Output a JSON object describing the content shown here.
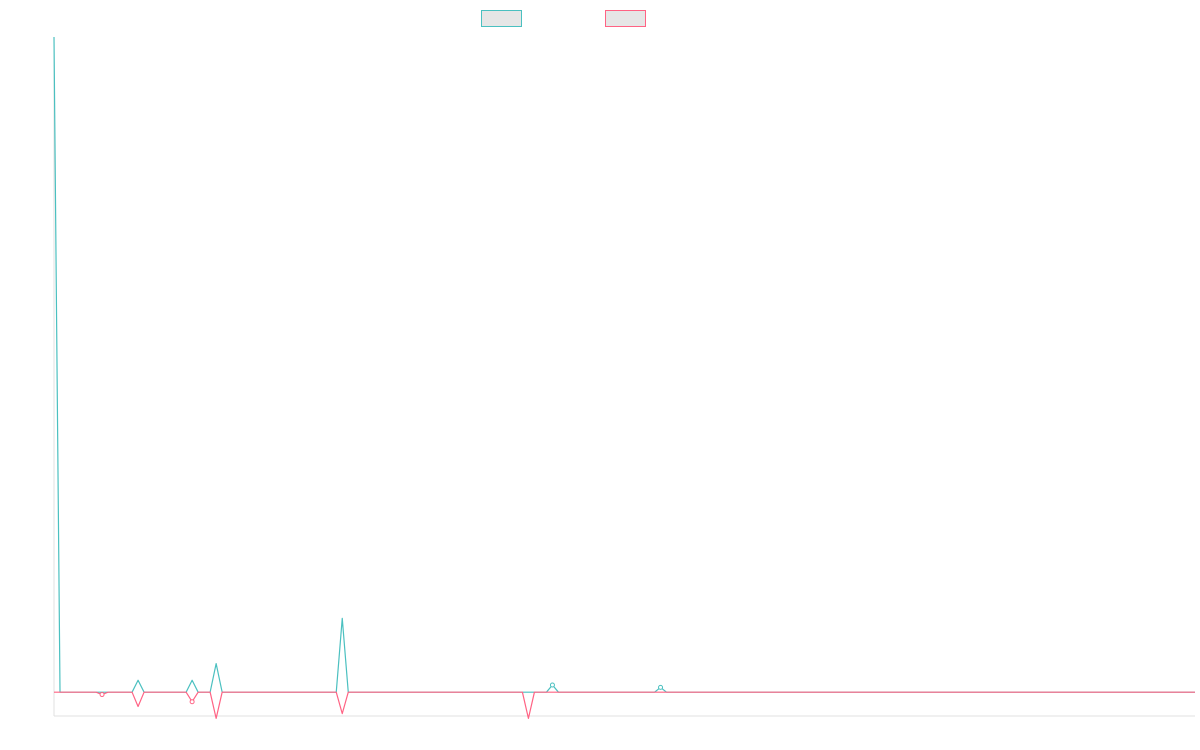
{
  "chart_data": {
    "type": "line",
    "title": "",
    "xlabel": "",
    "ylabel": "",
    "legend_position": "top-center",
    "grid": false,
    "x": [
      0,
      1,
      2,
      3,
      4,
      5,
      6,
      7,
      8,
      9,
      10,
      11,
      12,
      13,
      14,
      15,
      16,
      17,
      18,
      19,
      20,
      21,
      22,
      23,
      24,
      25,
      26,
      27,
      28,
      29,
      30,
      31,
      32,
      33,
      34,
      35,
      36,
      37,
      38,
      39,
      40,
      41,
      42,
      43,
      44,
      45,
      46,
      47,
      48,
      49,
      50,
      51,
      52,
      53,
      54,
      55,
      56,
      57,
      58,
      59,
      60,
      61,
      62,
      63,
      64,
      65,
      66,
      67,
      68,
      69,
      70,
      71,
      72,
      73,
      74,
      75,
      76,
      77,
      78,
      79,
      80,
      81,
      82,
      83,
      84,
      85,
      86,
      87,
      88,
      89,
      90,
      91,
      92,
      93,
      94,
      95,
      96,
      97,
      98,
      99,
      100,
      101,
      102,
      103,
      104,
      105,
      106,
      107,
      108,
      109,
      110,
      111,
      112,
      113,
      114,
      115,
      116,
      117,
      118,
      119,
      120,
      121,
      122,
      123,
      124,
      125,
      126,
      127,
      128,
      129,
      130,
      131,
      132,
      133,
      134,
      135,
      136,
      137,
      138,
      139,
      140,
      141,
      142,
      143,
      144,
      145,
      146,
      147,
      148,
      149,
      150,
      151,
      152,
      153,
      154,
      155,
      156,
      157,
      158,
      159,
      160,
      161,
      162,
      163,
      164,
      165,
      166,
      167,
      168,
      169,
      170,
      171,
      172,
      173,
      174,
      175,
      176,
      177,
      178,
      179,
      180,
      181,
      182,
      183,
      184,
      185,
      186,
      187,
      188,
      189,
      190
    ],
    "ylim": [
      -10,
      275
    ],
    "series": [
      {
        "color": "#4bc0c0",
        "values": [
          275,
          0,
          0,
          0,
          0,
          0,
          0,
          0,
          0,
          0,
          0,
          0,
          0,
          0,
          5,
          0,
          0,
          0,
          0,
          0,
          0,
          0,
          0,
          5,
          0,
          0,
          0,
          12,
          0,
          0,
          0,
          0,
          0,
          0,
          0,
          0,
          0,
          0,
          0,
          0,
          0,
          0,
          0,
          0,
          0,
          0,
          0,
          0,
          31,
          0,
          0,
          0,
          0,
          0,
          0,
          0,
          0,
          0,
          0,
          0,
          0,
          0,
          0,
          0,
          0,
          0,
          0,
          0,
          0,
          0,
          0,
          0,
          0,
          0,
          0,
          0,
          0,
          0,
          0,
          0,
          0,
          0,
          0,
          3,
          0,
          0,
          0,
          0,
          0,
          0,
          0,
          0,
          0,
          0,
          0,
          0,
          0,
          0,
          0,
          0,
          0,
          2,
          0,
          0,
          0,
          0,
          0,
          0,
          0,
          0,
          0,
          0,
          0,
          0,
          0,
          0,
          0,
          0,
          0,
          0,
          0,
          0,
          0,
          0,
          0,
          0,
          0,
          0,
          0,
          0,
          0,
          0,
          0,
          0,
          0,
          0,
          0,
          0,
          0,
          0,
          0,
          0,
          0,
          0,
          0,
          0,
          0,
          0,
          0,
          0,
          0,
          0,
          0,
          0,
          0,
          0,
          0,
          0,
          0,
          0,
          0,
          0,
          0,
          0,
          0,
          0,
          0,
          0,
          0,
          0,
          0,
          0,
          0,
          0,
          0,
          0,
          0,
          0,
          0,
          0,
          0,
          0,
          0,
          0,
          0,
          0,
          0,
          0,
          0,
          0,
          0
        ]
      },
      {
        "color": "#ff6384",
        "values": [
          0,
          0,
          0,
          0,
          0,
          0,
          0,
          0,
          -1,
          0,
          0,
          0,
          0,
          0,
          -6,
          0,
          0,
          0,
          0,
          0,
          0,
          0,
          0,
          -4,
          0,
          0,
          0,
          -11,
          0,
          0,
          0,
          0,
          0,
          0,
          0,
          0,
          0,
          0,
          0,
          0,
          0,
          0,
          0,
          0,
          0,
          0,
          0,
          0,
          -9,
          0,
          0,
          0,
          0,
          0,
          0,
          0,
          0,
          0,
          0,
          0,
          0,
          0,
          0,
          0,
          0,
          0,
          0,
          0,
          0,
          0,
          0,
          0,
          0,
          0,
          0,
          0,
          0,
          0,
          0,
          -11,
          0,
          0,
          0,
          0,
          0,
          0,
          0,
          0,
          0,
          0,
          0,
          0,
          0,
          0,
          0,
          0,
          0,
          0,
          0,
          0,
          0,
          0,
          0,
          0,
          0,
          0,
          0,
          0,
          0,
          0,
          0,
          0,
          0,
          0,
          0,
          0,
          0,
          0,
          0,
          0,
          0,
          0,
          0,
          0,
          0,
          0,
          0,
          0,
          0,
          0,
          0,
          0,
          0,
          0,
          0,
          0,
          0,
          0,
          0,
          0,
          0,
          0,
          0,
          0,
          0,
          0,
          0,
          0,
          0,
          0,
          0,
          0,
          0,
          0,
          0,
          0,
          0,
          0,
          0,
          0,
          0,
          0,
          0,
          0,
          0,
          0,
          0,
          0,
          0,
          0,
          0,
          0,
          0,
          0,
          0,
          0,
          0,
          0,
          0,
          0,
          0,
          0,
          0,
          0,
          0,
          0,
          0,
          0,
          0,
          0,
          0
        ]
      }
    ]
  },
  "colors": {
    "background": "#ffffff",
    "axis": "#e0e0e0",
    "legend_fill": "#e6e6e6"
  }
}
